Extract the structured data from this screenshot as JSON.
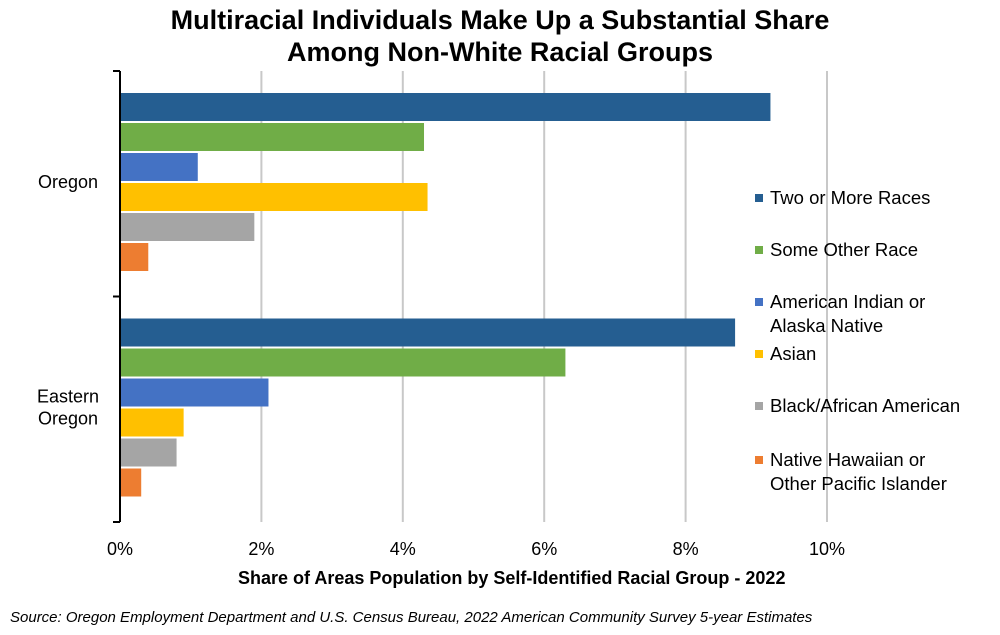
{
  "chart_data": {
    "type": "bar",
    "orientation": "horizontal",
    "title": "Multiracial Individuals Make Up a Substantial Share Among Non-White Racial Groups",
    "title_lines": [
      "Multiracial Individuals Make Up a Substantial Share",
      "Among Non-White Racial Groups"
    ],
    "xlabel": "Share of Areas Population by Self-Identified Racial Group - 2022",
    "ylabel": "",
    "xlim": [
      0,
      10
    ],
    "x_ticks": [
      "0%",
      "2%",
      "4%",
      "6%",
      "8%",
      "10%"
    ],
    "grid": true,
    "legend_position": "right",
    "categories": [
      "Oregon",
      "Eastern Oregon"
    ],
    "category_labels": [
      [
        "Oregon"
      ],
      [
        "Eastern",
        "Oregon"
      ]
    ],
    "series": [
      {
        "name": "Two or More Races",
        "legend_lines": [
          "Two or More Races"
        ],
        "color": "#255E91",
        "values": [
          9.2,
          8.7
        ]
      },
      {
        "name": "Some Other Race",
        "legend_lines": [
          "Some Other Race"
        ],
        "color": "#70AD47",
        "values": [
          4.3,
          6.3
        ]
      },
      {
        "name": "American Indian or Alaska Native",
        "legend_lines": [
          "American Indian or",
          "Alaska Native"
        ],
        "color": "#4472C4",
        "values": [
          1.1,
          2.1
        ]
      },
      {
        "name": "Asian",
        "legend_lines": [
          "Asian"
        ],
        "color": "#FFC000",
        "values": [
          4.35,
          0.9
        ]
      },
      {
        "name": "Black/African American",
        "legend_lines": [
          "Black/African American"
        ],
        "color": "#A5A5A5",
        "values": [
          1.9,
          0.8
        ]
      },
      {
        "name": "Native Hawaiian or Other Pacific Islander",
        "legend_lines": [
          "Native Hawaiian or",
          "Other Pacific Islander"
        ],
        "color": "#ED7D31",
        "values": [
          0.4,
          0.3
        ]
      }
    ]
  },
  "source": "Source: Oregon Employment Department and U.S. Census Bureau, 2022 American Community Survey 5-year Estimates"
}
